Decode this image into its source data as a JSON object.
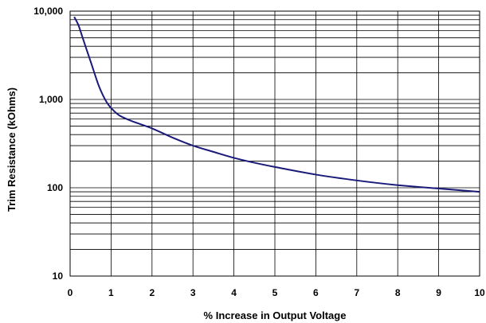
{
  "chart_data": {
    "type": "line",
    "xlabel": "% Increase in Output Voltage",
    "ylabel": "Trim Resistance (kOhms)",
    "xlim": [
      0,
      10
    ],
    "ylim": [
      10,
      10000
    ],
    "y_scale": "log",
    "grid": true,
    "x_ticks": [
      "0",
      "1",
      "2",
      "3",
      "4",
      "5",
      "6",
      "7",
      "8",
      "9",
      "10"
    ],
    "y_ticks": [
      "10",
      "100",
      "1,000",
      "10,000"
    ],
    "colors": {
      "line": "#1a1a7a",
      "grid": "#000000",
      "background": "#ffffff"
    },
    "series": [
      {
        "x": [
          0.1,
          0.2,
          0.3,
          0.4,
          0.5,
          0.6,
          0.7,
          0.8,
          0.9,
          1.0,
          1.2,
          1.5,
          2,
          2.5,
          3,
          3.5,
          4,
          4.5,
          5,
          6,
          7,
          8,
          9,
          10
        ],
        "values": [
          8600,
          7000,
          5100,
          3700,
          2700,
          1950,
          1430,
          1120,
          920,
          800,
          660,
          570,
          470,
          370,
          300,
          255,
          218,
          192,
          172,
          141,
          121,
          107,
          98,
          90
        ]
      }
    ]
  }
}
